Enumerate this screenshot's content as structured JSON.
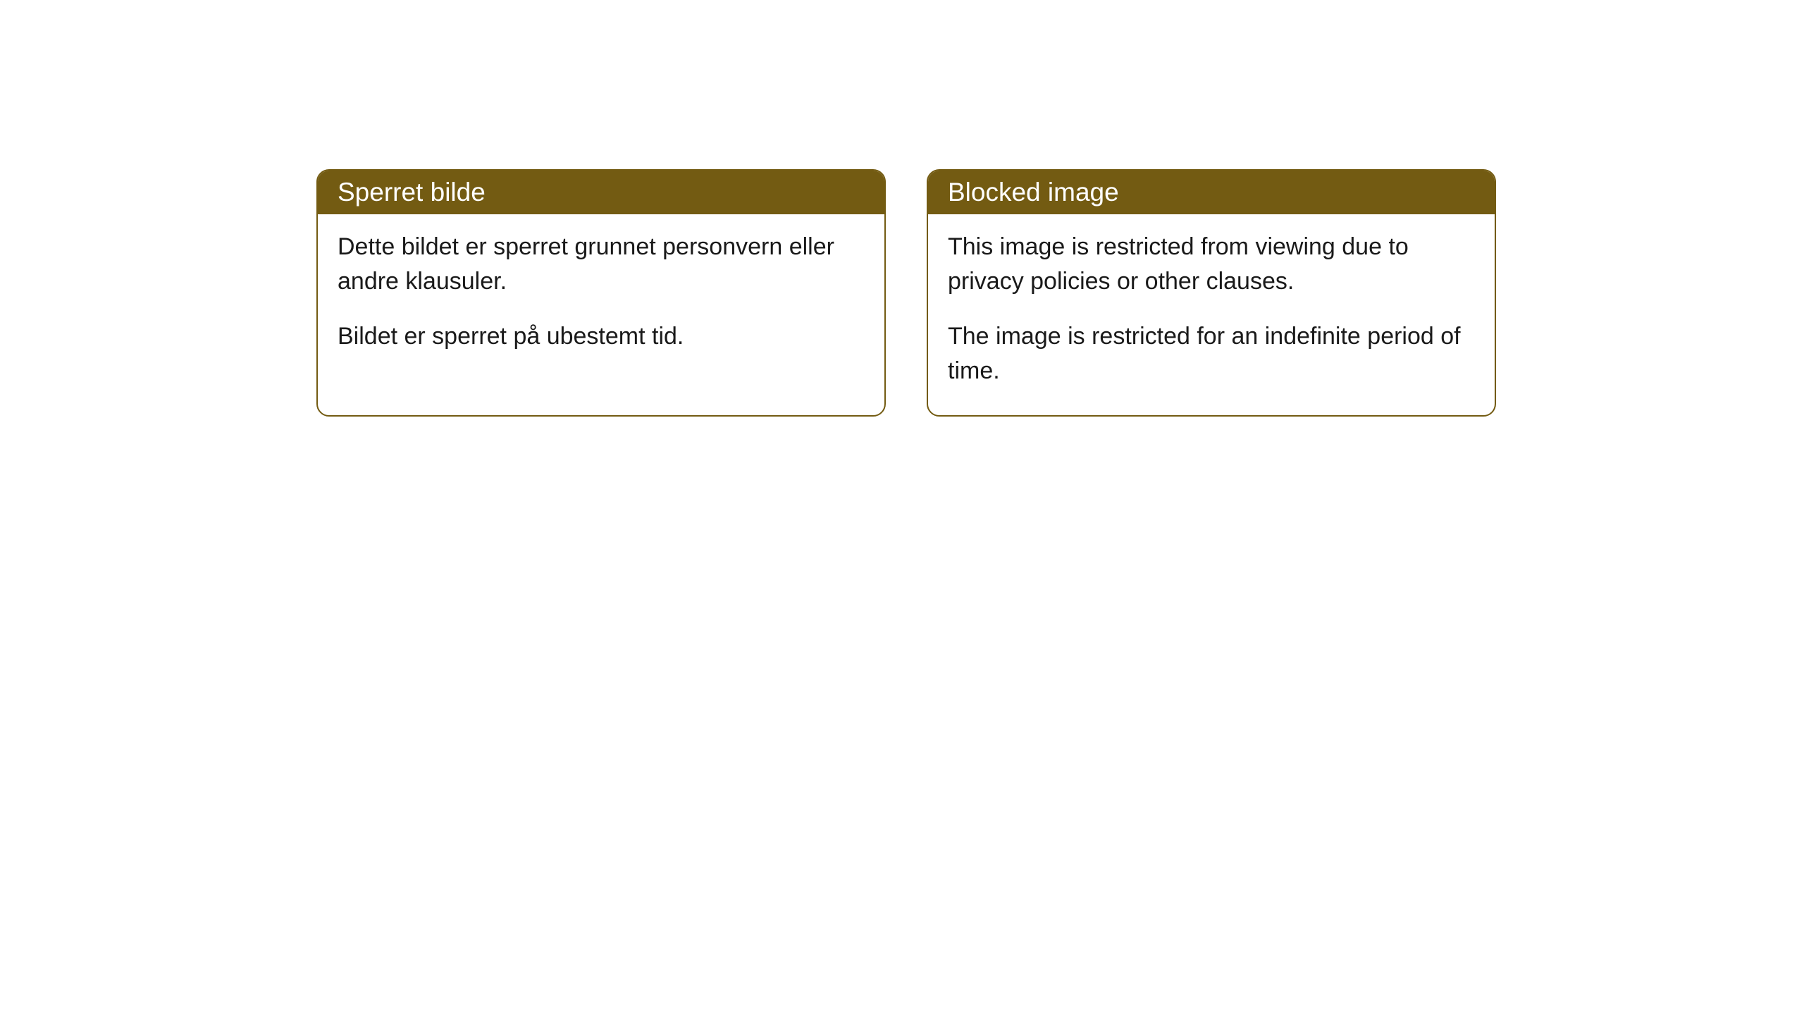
{
  "cards": [
    {
      "title": "Sperret bilde",
      "paragraph1": "Dette bildet er sperret grunnet personvern eller andre klausuler.",
      "paragraph2": "Bildet er sperret på ubestemt tid."
    },
    {
      "title": "Blocked image",
      "paragraph1": "This image is restricted from viewing due to privacy policies or other clauses.",
      "paragraph2": "The image is restricted for an indefinite period of time."
    }
  ],
  "style": {
    "header_bg_color": "#735b12",
    "header_text_color": "#ffffff",
    "border_color": "#735b12",
    "body_bg_color": "#ffffff",
    "body_text_color": "#1a1a1a",
    "border_radius": 18,
    "title_fontsize": 37,
    "body_fontsize": 34
  }
}
